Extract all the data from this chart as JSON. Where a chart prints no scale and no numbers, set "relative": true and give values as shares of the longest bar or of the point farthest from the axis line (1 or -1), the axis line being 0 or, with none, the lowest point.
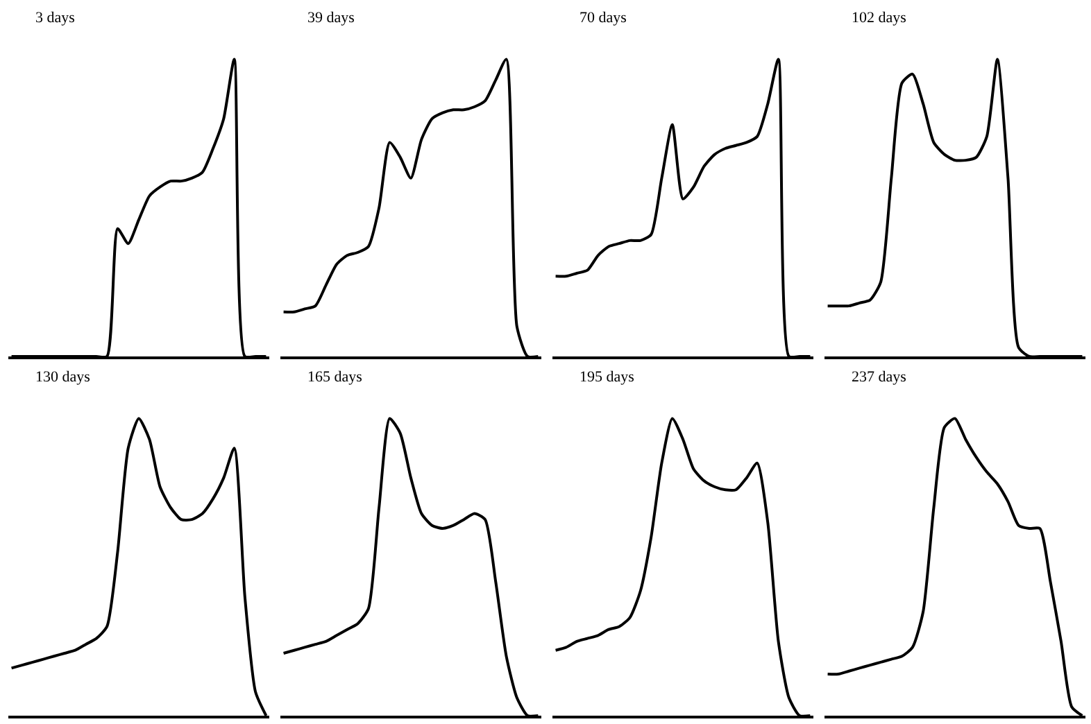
{
  "chart_data": [
    {
      "type": "line",
      "title": "3 days",
      "relative": true,
      "color": "#000000",
      "categories": [
        null,
        null,
        null,
        null,
        null,
        null,
        null,
        null,
        null,
        null,
        null,
        null,
        null,
        null,
        null,
        null,
        null,
        null,
        null,
        null,
        null,
        null,
        null,
        null,
        null
      ],
      "values": [
        0,
        0,
        0,
        0,
        0,
        0,
        0,
        0,
        0,
        0,
        0.43,
        0.38,
        0.46,
        0.54,
        0.57,
        0.59,
        0.59,
        0.6,
        0.62,
        0.7,
        0.8,
        1,
        0,
        0,
        0
      ]
    },
    {
      "type": "line",
      "title": "39 days",
      "relative": true,
      "color": "#000000",
      "categories": [
        null,
        null,
        null,
        null,
        null,
        null,
        null,
        null,
        null,
        null,
        null,
        null,
        null,
        null,
        null,
        null,
        null,
        null,
        null,
        null,
        null,
        null,
        null,
        null,
        null
      ],
      "values": [
        0.15,
        0.15,
        0.16,
        0.17,
        0.24,
        0.31,
        0.34,
        0.35,
        0.37,
        0.5,
        0.72,
        0.67,
        0.6,
        0.73,
        0.8,
        0.82,
        0.83,
        0.83,
        0.84,
        0.86,
        0.93,
        1,
        0.1,
        0,
        0
      ]
    },
    {
      "type": "line",
      "title": "70 days",
      "relative": true,
      "color": "#000000",
      "categories": [
        null,
        null,
        null,
        null,
        null,
        null,
        null,
        null,
        null,
        null,
        null,
        null,
        null,
        null,
        null,
        null,
        null,
        null,
        null,
        null,
        null,
        null,
        null,
        null,
        null
      ],
      "values": [
        0.27,
        0.27,
        0.28,
        0.29,
        0.34,
        0.37,
        0.38,
        0.39,
        0.39,
        0.41,
        0.6,
        0.78,
        0.53,
        0.57,
        0.64,
        0.68,
        0.7,
        0.71,
        0.72,
        0.74,
        0.85,
        1,
        0,
        0,
        0
      ]
    },
    {
      "type": "line",
      "title": "102 days",
      "relative": true,
      "color": "#000000",
      "categories": [
        null,
        null,
        null,
        null,
        null,
        null,
        null,
        null,
        null,
        null,
        null,
        null,
        null,
        null,
        null,
        null,
        null,
        null,
        null,
        null,
        null,
        null,
        null,
        null,
        null
      ],
      "values": [
        0.17,
        0.17,
        0.17,
        0.18,
        0.19,
        0.25,
        0.6,
        0.92,
        0.95,
        0.85,
        0.72,
        0.68,
        0.66,
        0.66,
        0.67,
        0.74,
        1,
        0.6,
        0.03,
        0,
        0,
        0,
        0,
        0,
        0
      ]
    },
    {
      "type": "line",
      "title": "130 days",
      "relative": true,
      "color": "#000000",
      "categories": [
        null,
        null,
        null,
        null,
        null,
        null,
        null,
        null,
        null,
        null,
        null,
        null,
        null,
        null,
        null,
        null,
        null,
        null,
        null,
        null,
        null,
        null,
        null,
        null,
        null
      ],
      "values": [
        0.16,
        0.17,
        0.18,
        0.19,
        0.2,
        0.21,
        0.22,
        0.24,
        0.26,
        0.3,
        0.55,
        0.9,
        1,
        0.93,
        0.77,
        0.7,
        0.66,
        0.66,
        0.68,
        0.73,
        0.8,
        0.9,
        0.4,
        0.08,
        0
      ]
    },
    {
      "type": "line",
      "title": "165 days",
      "relative": true,
      "color": "#000000",
      "categories": [
        null,
        null,
        null,
        null,
        null,
        null,
        null,
        null,
        null,
        null,
        null,
        null,
        null,
        null,
        null,
        null,
        null,
        null,
        null,
        null,
        null,
        null,
        null,
        null,
        null
      ],
      "values": [
        0.21,
        0.22,
        0.23,
        0.24,
        0.25,
        0.27,
        0.29,
        0.31,
        0.36,
        0.7,
        1,
        0.95,
        0.8,
        0.68,
        0.64,
        0.63,
        0.64,
        0.66,
        0.68,
        0.66,
        0.45,
        0.2,
        0.06,
        0,
        0
      ]
    },
    {
      "type": "line",
      "title": "195 days",
      "relative": true,
      "color": "#000000",
      "categories": [
        null,
        null,
        null,
        null,
        null,
        null,
        null,
        null,
        null,
        null,
        null,
        null,
        null,
        null,
        null,
        null,
        null,
        null,
        null,
        null,
        null,
        null,
        null,
        null,
        null
      ],
      "values": [
        0.22,
        0.23,
        0.25,
        0.26,
        0.27,
        0.29,
        0.3,
        0.33,
        0.42,
        0.6,
        0.85,
        1,
        0.93,
        0.83,
        0.79,
        0.77,
        0.76,
        0.76,
        0.8,
        0.85,
        0.65,
        0.25,
        0.06,
        0,
        0
      ]
    },
    {
      "type": "line",
      "title": "237 days",
      "relative": true,
      "color": "#000000",
      "categories": [
        null,
        null,
        null,
        null,
        null,
        null,
        null,
        null,
        null,
        null,
        null,
        null,
        null,
        null,
        null,
        null,
        null,
        null,
        null,
        null,
        null,
        null,
        null,
        null,
        null
      ],
      "values": [
        0.14,
        0.14,
        0.15,
        0.16,
        0.17,
        0.18,
        0.19,
        0.2,
        0.23,
        0.35,
        0.7,
        0.97,
        1,
        0.93,
        0.87,
        0.82,
        0.78,
        0.72,
        0.64,
        0.63,
        0.63,
        0.45,
        0.25,
        0.03,
        0
      ]
    }
  ]
}
